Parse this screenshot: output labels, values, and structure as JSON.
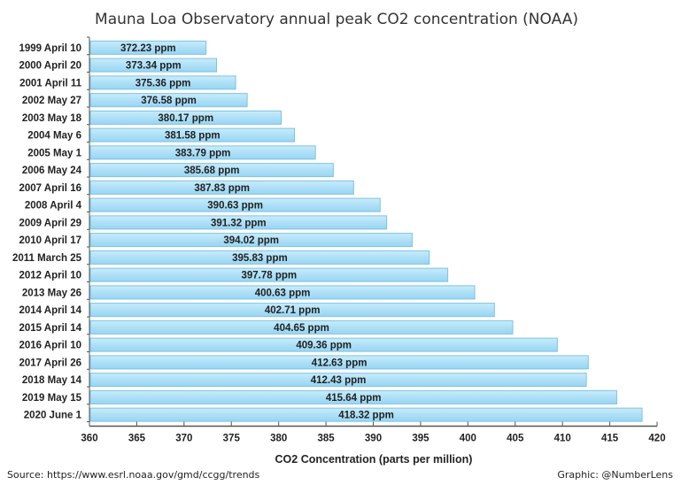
{
  "chart_data": {
    "type": "bar",
    "orientation": "horizontal",
    "title": "Mauna Loa Observatory annual peak CO2 concentration (NOAA)",
    "xlabel": "CO2 Concentration (parts per million)",
    "ylabel": "",
    "xlim": [
      360,
      420
    ],
    "xticks": [
      "360",
      "365",
      "370",
      "375",
      "380",
      "385",
      "390",
      "395",
      "400",
      "405",
      "410",
      "415",
      "420"
    ],
    "grid": false,
    "value_suffix": " ppm",
    "categories": [
      "1999 April 10",
      "2000 April 20",
      "2001 April 11",
      "2002 May 27",
      "2003 May 18",
      "2004 May 6",
      "2005 May 1",
      "2006 May 24",
      "2007 April 16",
      "2008 April 4",
      "2009 April 29",
      "2010 April 17",
      "2011 March 25",
      "2012 April 10",
      "2013 May 26",
      "2014 April 14",
      "2015 April 14",
      "2016 April 10",
      "2017 April 26",
      "2018 May 14",
      "2019 May 15",
      "2020 June 1"
    ],
    "values": [
      372.23,
      373.34,
      375.36,
      376.58,
      380.17,
      381.58,
      383.79,
      385.68,
      387.83,
      390.63,
      391.32,
      394.02,
      395.83,
      397.78,
      400.63,
      402.71,
      404.65,
      409.36,
      412.63,
      412.43,
      415.64,
      418.32
    ],
    "data_labels": [
      "372.23 ppm",
      "373.34 ppm",
      "375.36 ppm",
      "376.58 ppm",
      "380.17 ppm",
      "381.58 ppm",
      "383.79 ppm",
      "385.68 ppm",
      "387.83 ppm",
      "390.63 ppm",
      "391.32 ppm",
      "394.02 ppm",
      "395.83 ppm",
      "397.78 ppm",
      "400.63 ppm",
      "402.71 ppm",
      "404.65 ppm",
      "409.36 ppm",
      "412.63 ppm",
      "412.43 ppm",
      "415.64 ppm",
      "418.32 ppm"
    ],
    "bar_color": "#aee0f7",
    "bar_edge_color": "#7cc3e3"
  },
  "footer": {
    "source": "Source: https://www.esrl.noaa.gov/gmd/ccgg/trends",
    "credit": "Graphic: @NumberLens"
  }
}
